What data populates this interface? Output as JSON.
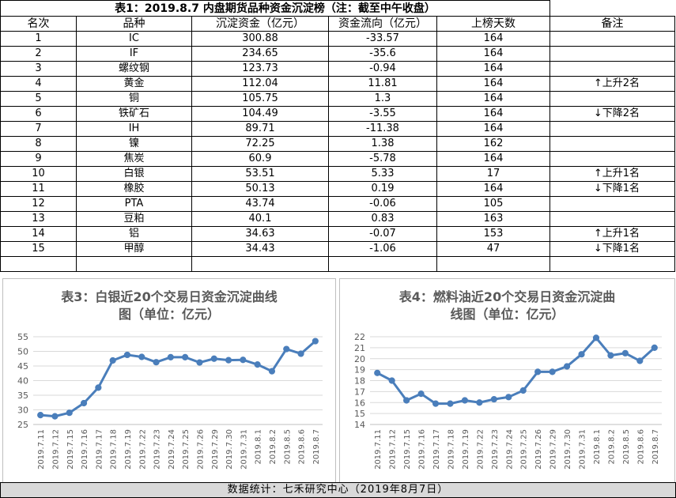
{
  "table": {
    "title": "表1：2019.8.7 内盘期货品种资金沉淀榜（注：截至中午收盘）",
    "headers": [
      "名次",
      "品种",
      "沉淀资金（亿元）",
      "资金流向（亿元）",
      "上榜天数",
      "备注"
    ],
    "rows": [
      [
        "1",
        "IC",
        "300.88",
        "-33.57",
        "164",
        ""
      ],
      [
        "2",
        "IF",
        "234.65",
        "-35.6",
        "164",
        ""
      ],
      [
        "3",
        "螺纹钢",
        "123.73",
        "-0.94",
        "164",
        ""
      ],
      [
        "4",
        "黄金",
        "112.04",
        "11.81",
        "164",
        "↑上升2名"
      ],
      [
        "5",
        "铜",
        "105.75",
        "1.3",
        "164",
        ""
      ],
      [
        "6",
        "铁矿石",
        "104.49",
        "-3.55",
        "164",
        "↓下降2名"
      ],
      [
        "7",
        "IH",
        "89.71",
        "-11.38",
        "164",
        ""
      ],
      [
        "8",
        "镍",
        "72.25",
        "1.38",
        "162",
        ""
      ],
      [
        "9",
        "焦炭",
        "60.9",
        "-5.78",
        "164",
        ""
      ],
      [
        "10",
        "白银",
        "53.51",
        "5.33",
        "17",
        "↑上升1名"
      ],
      [
        "11",
        "橡胶",
        "50.13",
        "0.19",
        "164",
        "↓下降1名"
      ],
      [
        "12",
        "PTA",
        "43.74",
        "-0.06",
        "105",
        ""
      ],
      [
        "13",
        "豆粕",
        "40.1",
        "0.83",
        "163",
        ""
      ],
      [
        "14",
        "铝",
        "34.63",
        "-0.07",
        "153",
        "↑上升1名"
      ],
      [
        "15",
        "甲醇",
        "34.43",
        "-1.06",
        "47",
        "↓下降1名"
      ],
      [
        "",
        "",
        "",
        "",
        "",
        ""
      ]
    ]
  },
  "chart_data": [
    {
      "type": "line",
      "title_line1": "表3：白银近20个交易日资金沉淀曲线",
      "title_line2": "图（单位：亿元）",
      "categories": [
        "2019.7.11",
        "2019.7.12",
        "2019.7.15",
        "2019.7.16",
        "2019.7.17",
        "2019.7.18",
        "2019.7.19",
        "2019.7.22",
        "2019.7.23",
        "2019.7.24",
        "2019.7.25",
        "2019.7.26",
        "2019.7.29",
        "2019.7.30",
        "2019.7.31",
        "2019.8.1",
        "2019.8.2",
        "2019.8.5",
        "2019.8.6",
        "2019.8.7"
      ],
      "values": [
        28.2,
        27.8,
        29.0,
        32.3,
        37.6,
        46.9,
        48.8,
        48.1,
        46.3,
        48.0,
        48.0,
        46.2,
        47.5,
        47.0,
        47.1,
        45.5,
        43.2,
        50.8,
        49.2,
        53.5
      ],
      "ylim": [
        25,
        55
      ],
      "yticks": [
        25,
        30,
        35,
        40,
        45,
        50,
        55
      ],
      "grid": true,
      "color": "#4a7ebb"
    },
    {
      "type": "line",
      "title_line1": "表4：燃料油近20个交易日资金沉淀曲",
      "title_line2": "线图（单位：亿元）",
      "categories": [
        "2019.7.11",
        "2019.7.12",
        "2019.7.15",
        "2019.7.16",
        "2019.7.17",
        "2019.7.18",
        "2019.7.19",
        "2019.7.22",
        "2019.7.23",
        "2019.7.24",
        "2019.7.25",
        "2019.7.26",
        "2019.7.29",
        "2019.7.30",
        "2019.7.31",
        "2019.8.1",
        "2019.8.2",
        "2019.8.5",
        "2019.8.6",
        "2019.8.7"
      ],
      "values": [
        18.7,
        18.0,
        16.2,
        16.8,
        15.9,
        15.9,
        16.2,
        16.0,
        16.3,
        16.5,
        17.1,
        18.8,
        18.8,
        19.3,
        20.4,
        21.9,
        20.3,
        20.5,
        19.8,
        21.0
      ],
      "ylim": [
        14,
        22
      ],
      "yticks": [
        14,
        15,
        16,
        17,
        18,
        19,
        20,
        21,
        22
      ],
      "grid": true,
      "color": "#4a7ebb"
    }
  ],
  "footer": "数据统计：七禾研究中心（2019年8月7日）"
}
